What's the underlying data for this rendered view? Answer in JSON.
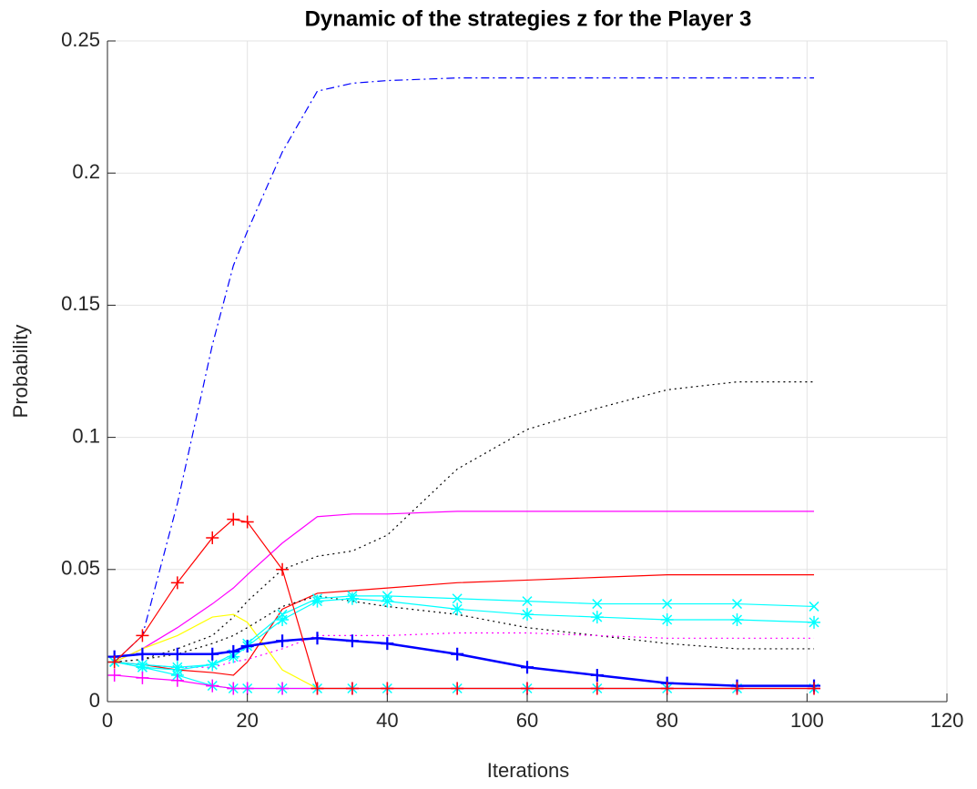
{
  "chart_data": {
    "type": "line",
    "title": "Dynamic of the strategies z for the Player 3",
    "xlabel": "Iterations",
    "ylabel": "Probability",
    "x": [
      1,
      5,
      10,
      15,
      18,
      20,
      25,
      30,
      35,
      40,
      50,
      60,
      70,
      80,
      90,
      101
    ],
    "xlim": [
      0,
      120
    ],
    "xticks": [
      0,
      20,
      40,
      60,
      80,
      100,
      120
    ],
    "ylim": [
      0,
      0.25
    ],
    "yticks": [
      0,
      0.05,
      0.1,
      0.15,
      0.2,
      0.25
    ],
    "grid": true,
    "series": [
      {
        "color": "#0000ff",
        "line_style": "dash-dot",
        "marker": "none",
        "values": [
          0.015,
          0.025,
          0.075,
          0.135,
          0.165,
          0.178,
          0.208,
          0.231,
          0.234,
          0.235,
          0.236,
          0.236,
          0.236,
          0.236,
          0.236,
          0.236
        ]
      },
      {
        "color": "#000000",
        "line_style": "dotted",
        "marker": "none",
        "values": [
          0.015,
          0.016,
          0.02,
          0.025,
          0.032,
          0.038,
          0.05,
          0.055,
          0.057,
          0.063,
          0.088,
          0.103,
          0.111,
          0.118,
          0.121,
          0.121
        ]
      },
      {
        "color": "#ff00ff",
        "line_style": "solid",
        "marker": "none",
        "values": [
          0.015,
          0.02,
          0.028,
          0.037,
          0.043,
          0.048,
          0.06,
          0.07,
          0.071,
          0.071,
          0.072,
          0.072,
          0.072,
          0.072,
          0.072,
          0.072
        ]
      },
      {
        "color": "#ff0000",
        "line_style": "solid",
        "marker": "none",
        "values": [
          0.015,
          0.014,
          0.012,
          0.011,
          0.01,
          0.015,
          0.035,
          0.041,
          0.042,
          0.043,
          0.045,
          0.046,
          0.047,
          0.048,
          0.048,
          0.048
        ]
      },
      {
        "color": "#000000",
        "line_style": "dotted",
        "marker": "none",
        "values": [
          0.015,
          0.016,
          0.018,
          0.022,
          0.025,
          0.028,
          0.036,
          0.04,
          0.038,
          0.036,
          0.033,
          0.028,
          0.025,
          0.022,
          0.02,
          0.02
        ]
      },
      {
        "color": "#ff00ff",
        "line_style": "dotted",
        "marker": "none",
        "values": [
          0.015,
          0.014,
          0.013,
          0.013,
          0.015,
          0.016,
          0.02,
          0.025,
          0.025,
          0.025,
          0.026,
          0.026,
          0.025,
          0.024,
          0.024,
          0.024
        ]
      },
      {
        "color": "#ffff00",
        "line_style": "solid",
        "marker": "none",
        "values": [
          0.015,
          0.02,
          0.025,
          0.032,
          0.033,
          0.03,
          0.012,
          0.005,
          0.005,
          0.005,
          0.005,
          0.005,
          0.005,
          0.005,
          0.005,
          0.005
        ]
      },
      {
        "color": "#00ffff",
        "line_style": "solid",
        "marker": "x",
        "values": [
          0.015,
          0.013,
          0.012,
          0.014,
          0.018,
          0.022,
          0.033,
          0.039,
          0.04,
          0.04,
          0.039,
          0.038,
          0.037,
          0.037,
          0.037,
          0.036
        ]
      },
      {
        "color": "#00ffff",
        "line_style": "solid",
        "marker": "star",
        "values": [
          0.015,
          0.014,
          0.013,
          0.014,
          0.017,
          0.021,
          0.031,
          0.038,
          0.039,
          0.038,
          0.035,
          0.033,
          0.032,
          0.031,
          0.031,
          0.03
        ]
      },
      {
        "color": "#00ffff",
        "line_style": "solid",
        "marker": "star",
        "values": [
          0.015,
          0.013,
          0.01,
          0.006,
          0.005,
          0.005,
          0.005,
          0.005,
          0.005,
          0.005,
          0.005,
          0.005,
          0.005,
          0.005,
          0.005,
          0.005
        ]
      },
      {
        "color": "#ff00ff",
        "line_style": "solid",
        "marker": "plus",
        "values": [
          0.01,
          0.009,
          0.008,
          0.006,
          0.005,
          0.005,
          0.005,
          0.005,
          0.005,
          0.005,
          0.005,
          0.005,
          0.005,
          0.005,
          0.005,
          0.005
        ]
      },
      {
        "color": "#0000ff",
        "line_style": "thick",
        "marker": "plus",
        "values": [
          0.017,
          0.018,
          0.018,
          0.018,
          0.019,
          0.021,
          0.023,
          0.024,
          0.023,
          0.022,
          0.018,
          0.013,
          0.01,
          0.007,
          0.006,
          0.006
        ]
      },
      {
        "color": "#ff0000",
        "line_style": "solid",
        "marker": "plus",
        "values": [
          0.015,
          0.025,
          0.045,
          0.062,
          0.069,
          0.068,
          0.05,
          0.005,
          0.005,
          0.005,
          0.005,
          0.005,
          0.005,
          0.005,
          0.005,
          0.005
        ]
      }
    ]
  }
}
